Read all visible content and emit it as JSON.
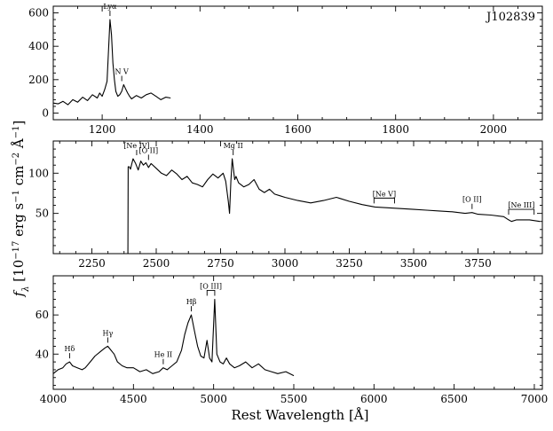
{
  "chart_data": {
    "type": "line",
    "ylabel": "f_λ [10^-17 erg s^-1 cm^-2 Å^-1]",
    "xlabel": "Rest Wavelength [Å]",
    "panels": [
      {
        "title": "J102839",
        "xlim": [
          1100,
          2100
        ],
        "ylim": [
          -40,
          640
        ],
        "xticks": [
          1200,
          1400,
          1600,
          1800,
          2000
        ],
        "yticks": [
          0,
          200,
          400,
          600
        ],
        "series": [
          {
            "x": [
              1100,
              1110,
              1120,
              1130,
              1140,
              1150,
              1160,
              1170,
              1180,
              1190,
              1195,
              1200,
              1205,
              1210,
              1213,
              1216,
              1219,
              1222,
              1225,
              1228,
              1232,
              1236,
              1240,
              1244,
              1248,
              1252,
              1256,
              1260,
              1270,
              1280,
              1290,
              1300,
              1310,
              1320,
              1330,
              1340
            ],
            "y": [
              60,
              55,
              70,
              50,
              80,
              65,
              95,
              75,
              110,
              90,
              120,
              100,
              140,
              190,
              380,
              560,
              470,
              300,
              200,
              130,
              100,
              110,
              130,
              170,
              145,
              120,
              100,
              85,
              105,
              90,
              110,
              120,
              100,
              80,
              95,
              90
            ]
          }
        ],
        "annotations": [
          {
            "label": "Lyα",
            "x": 1216,
            "y": 560
          },
          {
            "label": "N V",
            "x": 1240,
            "y": 170
          }
        ]
      },
      {
        "xlim": [
          2100,
          4000
        ],
        "ylim": [
          0,
          140
        ],
        "xticks": [
          2250,
          2500,
          2750,
          3000,
          3250,
          3500,
          3750
        ],
        "yticks": [
          50,
          100
        ],
        "series": [
          {
            "x": [
              2390,
              2391,
              2395,
              2400,
              2410,
              2420,
              2430,
              2440,
              2450,
              2460,
              2470,
              2480,
              2500,
              2520,
              2540,
              2560,
              2580,
              2600,
              2620,
              2640,
              2660,
              2680,
              2700,
              2720,
              2740,
              2760,
              2770,
              2780,
              2785,
              2790,
              2795,
              2800,
              2805,
              2810,
              2820,
              2840,
              2860,
              2880,
              2900,
              2920,
              2940,
              2960,
              2980,
              3000,
              3050,
              3100,
              3150,
              3200,
              3250,
              3300,
              3350,
              3400,
              3450,
              3500,
              3550,
              3600,
              3650,
              3700,
              3727,
              3750,
              3800,
              3850,
              3869,
              3880,
              3900,
              3950,
              3990
            ],
            "y": [
              0,
              108,
              108,
              105,
              118,
              112,
              104,
              115,
              110,
              113,
              107,
              112,
              106,
              100,
              97,
              104,
              99,
              92,
              96,
              88,
              86,
              83,
              92,
              99,
              94,
              100,
              90,
              65,
              50,
              90,
              118,
              105,
              92,
              96,
              88,
              83,
              86,
              92,
              80,
              76,
              80,
              74,
              72,
              70,
              66,
              63,
              66,
              70,
              65,
              61,
              58,
              57,
              56,
              55,
              54,
              53,
              52,
              50,
              51,
              49,
              48,
              46,
              42,
              40,
              42,
              42,
              40
            ]
          }
        ],
        "annotations": [
          {
            "label": "[Ne IV]",
            "x": 2424,
            "y": 118
          },
          {
            "label": "[O II]",
            "x": 2470,
            "y": 112
          },
          {
            "label": "Mg II",
            "x": 2799,
            "y": 118
          },
          {
            "label": "[Ne V]",
            "x_range": [
              3346,
              3426
            ],
            "y": 58
          },
          {
            "label": "[O II]",
            "x": 3727,
            "y": 51
          },
          {
            "label": "[Ne III]",
            "x_range": [
              3869,
              3968
            ],
            "y": 44
          }
        ]
      },
      {
        "xlim": [
          4000,
          7050
        ],
        "ylim": [
          22,
          80
        ],
        "xticks": [
          4000,
          4500,
          5000,
          5500,
          6000,
          6500,
          7000
        ],
        "yticks": [
          40,
          60
        ],
        "series": [
          {
            "x": [
              4000,
              4030,
              4060,
              4080,
              4102,
              4120,
              4150,
              4180,
              4200,
              4230,
              4260,
              4290,
              4320,
              4340,
              4360,
              4380,
              4400,
              4430,
              4460,
              4500,
              4540,
              4580,
              4620,
              4660,
              4686,
              4710,
              4740,
              4770,
              4800,
              4820,
              4840,
              4861,
              4880,
              4900,
              4920,
              4940,
              4959,
              4975,
              4990,
              5007,
              5020,
              5040,
              5060,
              5080,
              5100,
              5130,
              5160,
              5200,
              5240,
              5280,
              5320,
              5360,
              5400,
              5450,
              5500
            ],
            "y": [
              30,
              32,
              33,
              35,
              36,
              34,
              33,
              32,
              33,
              36,
              39,
              41,
              43,
              44,
              42,
              40,
              36,
              34,
              33,
              33,
              31,
              32,
              30,
              31,
              33,
              32,
              34,
              36,
              42,
              50,
              56,
              60,
              52,
              44,
              39,
              38,
              47,
              38,
              36,
              68,
              40,
              36,
              35,
              38,
              35,
              33,
              34,
              36,
              33,
              35,
              32,
              31,
              30,
              31,
              29
            ]
          }
        ],
        "annotations": [
          {
            "label": "Hδ",
            "x": 4102,
            "y": 36
          },
          {
            "label": "Hγ",
            "x": 4340,
            "y": 44
          },
          {
            "label": "He II",
            "x": 4686,
            "y": 33
          },
          {
            "label": "Hβ",
            "x": 4861,
            "y": 60
          },
          {
            "label": "[O III]",
            "x_range": [
              4959,
              5007
            ],
            "y": 68
          }
        ]
      }
    ]
  }
}
